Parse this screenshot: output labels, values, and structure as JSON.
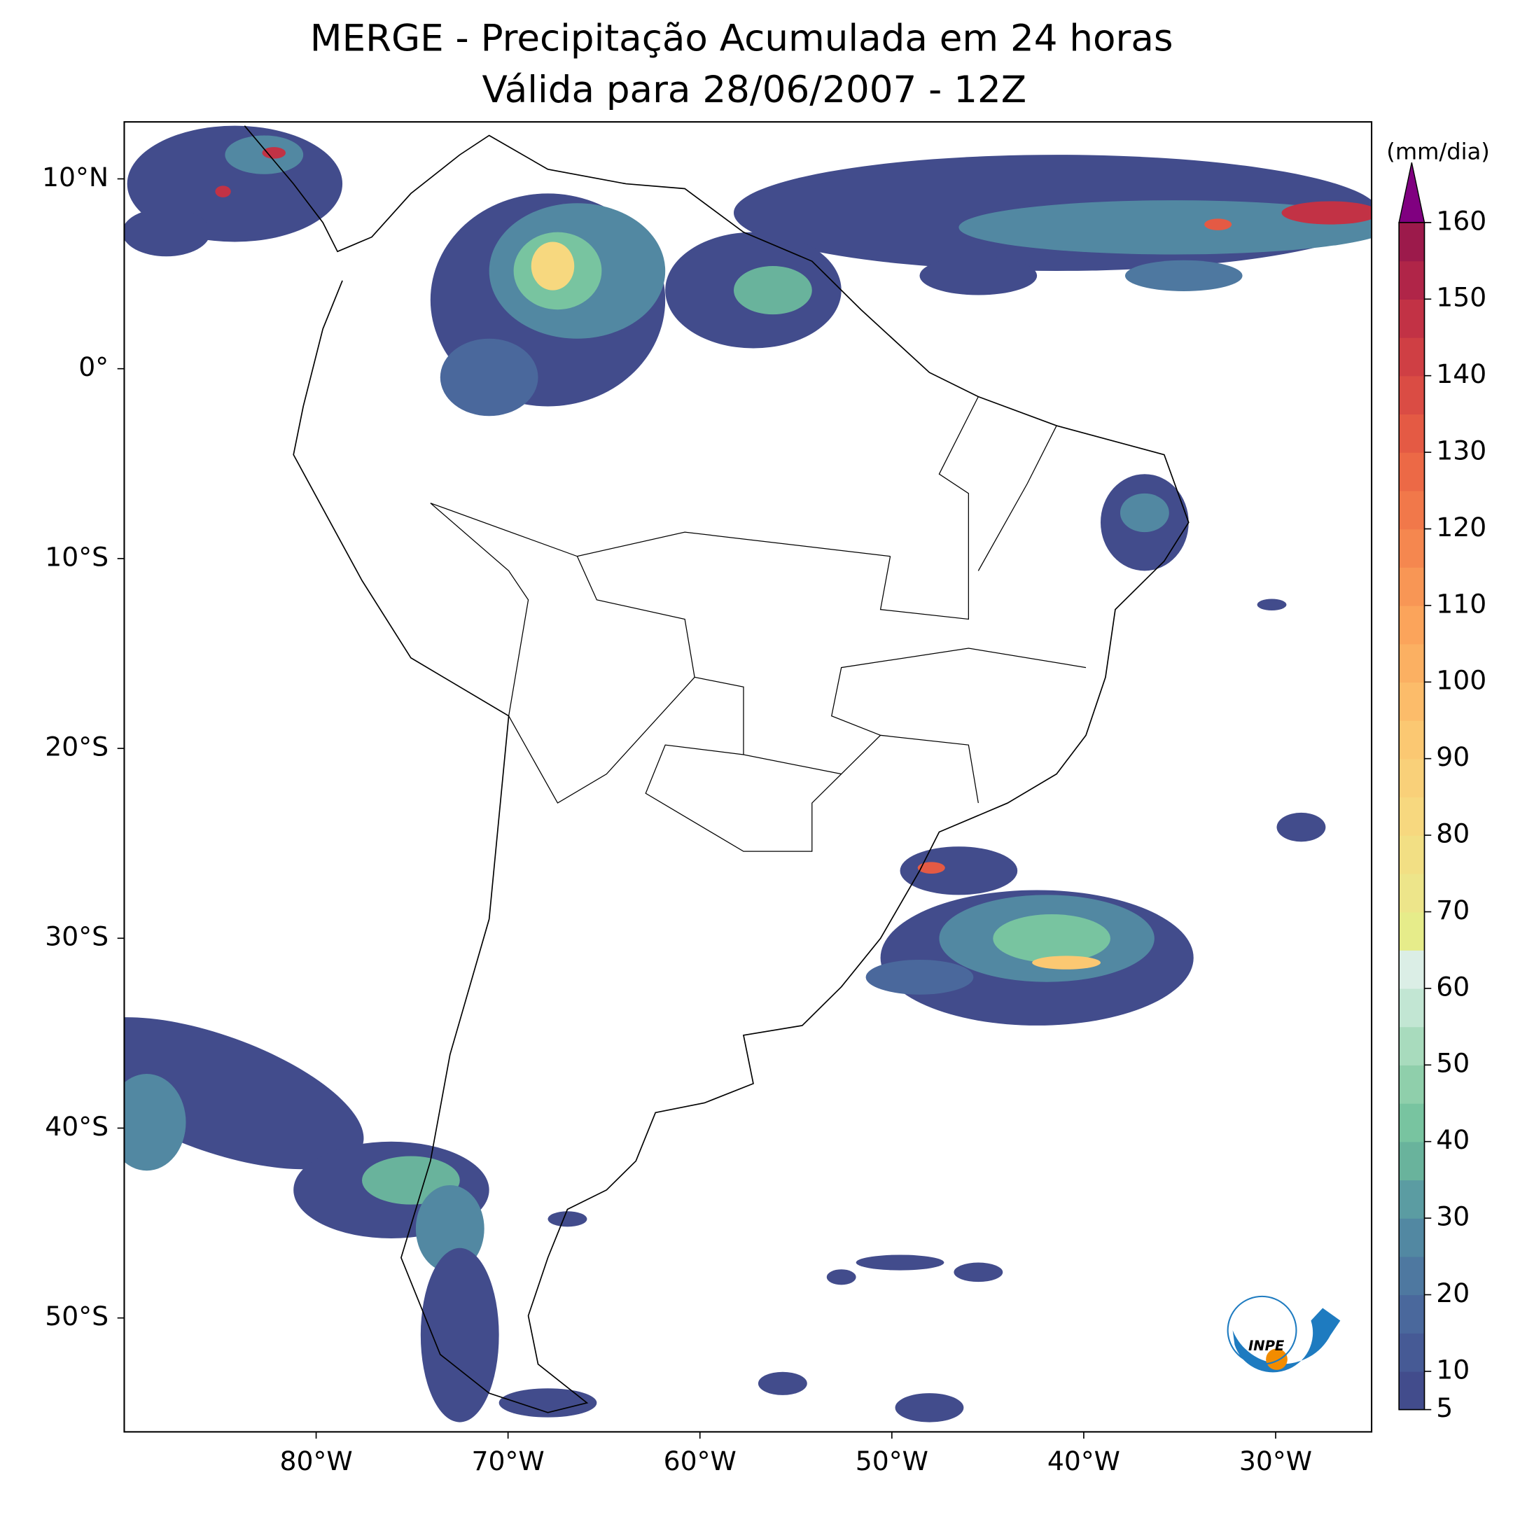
{
  "chart_data": {
    "type": "map",
    "title": "MERGE - Precipitação Acumulada em 24 horas",
    "subtitle": "Válida para 28/06/2007 - 12Z",
    "xlim": [
      -90,
      -25
    ],
    "ylim": [
      -56,
      13
    ],
    "xticks": [
      {
        "value": -80,
        "label": "80°W"
      },
      {
        "value": -70,
        "label": "70°W"
      },
      {
        "value": -60,
        "label": "60°W"
      },
      {
        "value": -50,
        "label": "50°W"
      },
      {
        "value": -40,
        "label": "40°W"
      },
      {
        "value": -30,
        "label": "30°W"
      }
    ],
    "yticks": [
      {
        "value": 10,
        "label": "10°N"
      },
      {
        "value": 0,
        "label": "0°"
      },
      {
        "value": -10,
        "label": "10°S"
      },
      {
        "value": -20,
        "label": "20°S"
      },
      {
        "value": -30,
        "label": "30°S"
      },
      {
        "value": -40,
        "label": "40°S"
      },
      {
        "value": -50,
        "label": "50°S"
      }
    ],
    "colorbar": {
      "label": "(mm/dia)",
      "lim": [
        5,
        160
      ],
      "ticks": [
        5,
        10,
        20,
        30,
        40,
        50,
        60,
        70,
        80,
        90,
        100,
        110,
        120,
        130,
        140,
        150,
        160
      ],
      "levels": [
        5,
        10,
        15,
        20,
        25,
        30,
        35,
        40,
        45,
        50,
        55,
        60,
        65,
        70,
        75,
        80,
        85,
        90,
        95,
        100,
        105,
        110,
        115,
        120,
        125,
        130,
        135,
        140,
        145,
        150,
        155,
        160
      ],
      "colors": [
        "#424c8c",
        "#465a95",
        "#4a689c",
        "#4e78a0",
        "#5288a2",
        "#5b9ca2",
        "#69b39c",
        "#78c4a0",
        "#8fcfab",
        "#a8dbbd",
        "#c2e6d3",
        "#dbeee6",
        "#e6ec8a",
        "#ede58a",
        "#f2df84",
        "#f7d87f",
        "#f9d079",
        "#fbc872",
        "#fcbc6a",
        "#fbb062",
        "#fba45b",
        "#f89655",
        "#f5874f",
        "#f1784a",
        "#ec6946",
        "#e45a44",
        "#da4c44",
        "#cf3f44",
        "#c23245",
        "#b02548",
        "#9c1a4b"
      ],
      "extend_color": "#800080"
    },
    "logo": "INPE"
  }
}
